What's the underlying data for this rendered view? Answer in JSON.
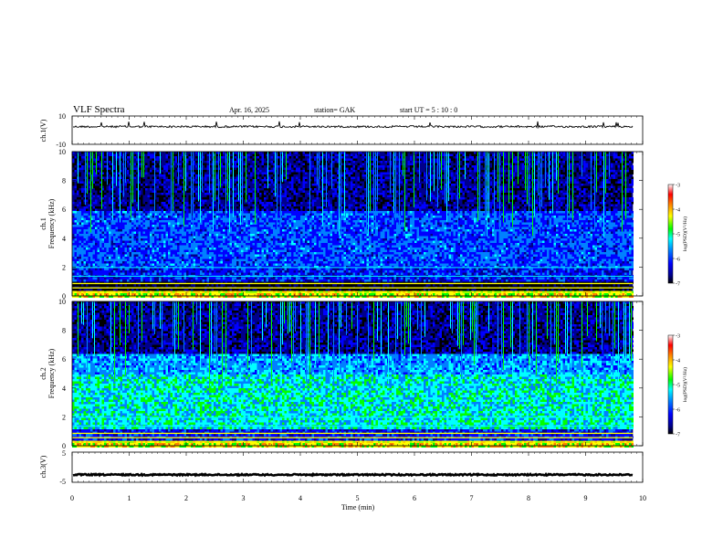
{
  "header": {
    "title": "VLF  Spectra",
    "date": "Apr. 16, 2025",
    "station": "station= GAK",
    "start": "start  UT  =    5  : 10 : 0"
  },
  "chart_data": [
    {
      "type": "line",
      "panel": "ch1-waveform",
      "ylabel": "ch.1(V)",
      "ylim": [
        -10,
        10
      ],
      "y_ticks": [
        "10",
        "-10"
      ],
      "baseline": 2.5,
      "color": "#000000"
    },
    {
      "type": "heatmap",
      "panel": "ch1-spectrogram",
      "ylabel_top": "ch.1",
      "ylabel": "Frequency  (kHz)",
      "ylim": [
        0,
        10
      ],
      "y_ticks": [
        "0",
        "2",
        "4",
        "6",
        "8",
        "10"
      ],
      "colorbar": {
        "label": "log(PSD)(V²/Hz)",
        "ticks": [
          "-3",
          "-4",
          "-5",
          "-6",
          "-7"
        ]
      }
    },
    {
      "type": "heatmap",
      "panel": "ch2-spectrogram",
      "ylabel_top": "ch.2",
      "ylabel": "Frequency  (kHz)",
      "ylim": [
        0,
        10
      ],
      "y_ticks": [
        "0",
        "2",
        "4",
        "6",
        "8",
        "10"
      ],
      "colorbar": {
        "label": "log(PSD)(V²/Hz)",
        "ticks": [
          "-3",
          "-4",
          "-5",
          "-6",
          "-7"
        ]
      }
    },
    {
      "type": "line",
      "panel": "ch3-waveform",
      "ylabel": "ch.3(V)",
      "ylim": [
        -5,
        5
      ],
      "y_ticks": [
        "5",
        "-5"
      ],
      "baseline": -2.5,
      "color": "#000000"
    }
  ],
  "x_axis": {
    "label": "Time  (min)",
    "range": [
      0,
      10
    ],
    "ticks": [
      "0",
      "1",
      "2",
      "3",
      "4",
      "5",
      "6",
      "7",
      "8",
      "9",
      "10"
    ],
    "data_end": 9.83
  },
  "colors": {
    "scale": [
      "#000000",
      "#00008b",
      "#0000ff",
      "#0080ff",
      "#00ffff",
      "#00ff00",
      "#ffff00",
      "#ff8000",
      "#ff0000",
      "#ffffff"
    ]
  }
}
